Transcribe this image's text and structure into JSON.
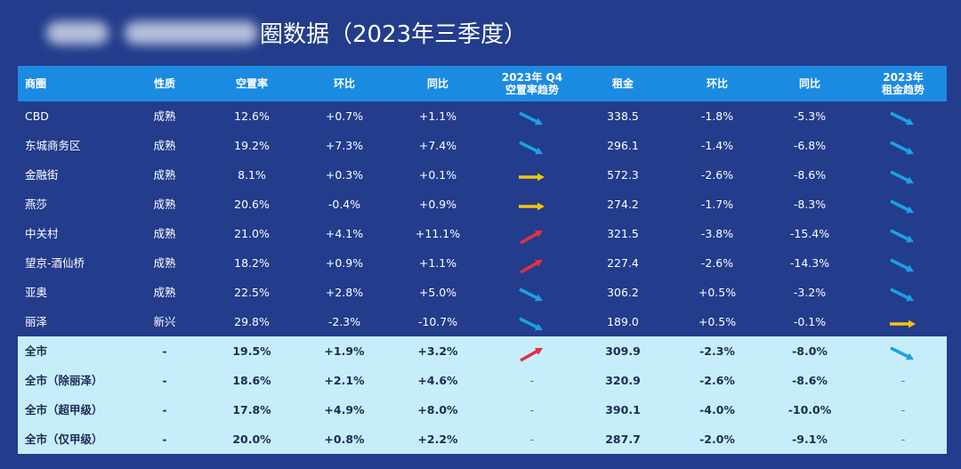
{
  "title": "圈数据（2023年三季度）",
  "table": {
    "header": [
      [
        "商圈"
      ],
      [
        "性质"
      ],
      [
        "空置率"
      ],
      [
        "环比"
      ],
      [
        "同比"
      ],
      [
        "2023年 Q4",
        "空置率趋势"
      ],
      [
        "租金"
      ],
      [
        "环比"
      ],
      [
        "同比"
      ],
      [
        "2023年",
        "租金趋势"
      ]
    ],
    "rows": [
      [
        "CBD",
        "成熟",
        "12.6%",
        "+0.7%",
        "+1.1%",
        null,
        "338.5",
        "-1.8%",
        "-5.3%",
        null
      ],
      [
        "东城商务区",
        "成熟",
        "19.2%",
        "+7.3%",
        "+7.4%",
        null,
        "296.1",
        "-1.4%",
        "-6.8%",
        null
      ],
      [
        "金融街",
        "成熟",
        "8.1%",
        "+0.3%",
        "+0.1%",
        null,
        "572.3",
        "-2.6%",
        "-8.6%",
        null
      ],
      [
        "燕莎",
        "成熟",
        "20.6%",
        "-0.4%",
        "+0.9%",
        null,
        "274.2",
        "-1.7%",
        "-8.3%",
        null
      ],
      [
        "中关村",
        "成熟",
        "21.0%",
        "+4.1%",
        "+11.1%",
        null,
        "321.5",
        "-3.8%",
        "-15.4%",
        null
      ],
      [
        "望京-酒仙桥",
        "成熟",
        "18.2%",
        "+0.9%",
        "+1.1%",
        null,
        "227.4",
        "-2.6%",
        "-14.3%",
        null
      ],
      [
        "亚奥",
        "成熟",
        "22.5%",
        "+2.8%",
        "+5.0%",
        null,
        "306.2",
        "+0.5%",
        "-3.2%",
        null
      ],
      [
        "丽泽",
        "新兴",
        "29.8%",
        "-2.3%",
        "-10.7%",
        null,
        "189.0",
        "+0.5%",
        "-0.1%",
        null
      ],
      [
        "全市",
        "-",
        "19.5%",
        "+1.9%",
        "+3.2%",
        null,
        "309.9",
        "-2.3%",
        "-8.0%",
        null
      ],
      [
        "全市（除丽泽）",
        "-",
        "18.6%",
        "+2.1%",
        "+4.6%",
        "-",
        "320.9",
        "-2.6%",
        "-8.6%",
        "-"
      ],
      [
        "全市（超甲级）",
        "-",
        "17.8%",
        "+4.9%",
        "+8.0%",
        "-",
        "390.1",
        "-4.0%",
        "-10.0%",
        "-"
      ],
      [
        "全市（仅甲级）",
        "-",
        "20.0%",
        "+0.8%",
        "+2.2%",
        "-",
        "287.7",
        "-2.0%",
        "-9.1%",
        "-"
      ]
    ]
  }
}
